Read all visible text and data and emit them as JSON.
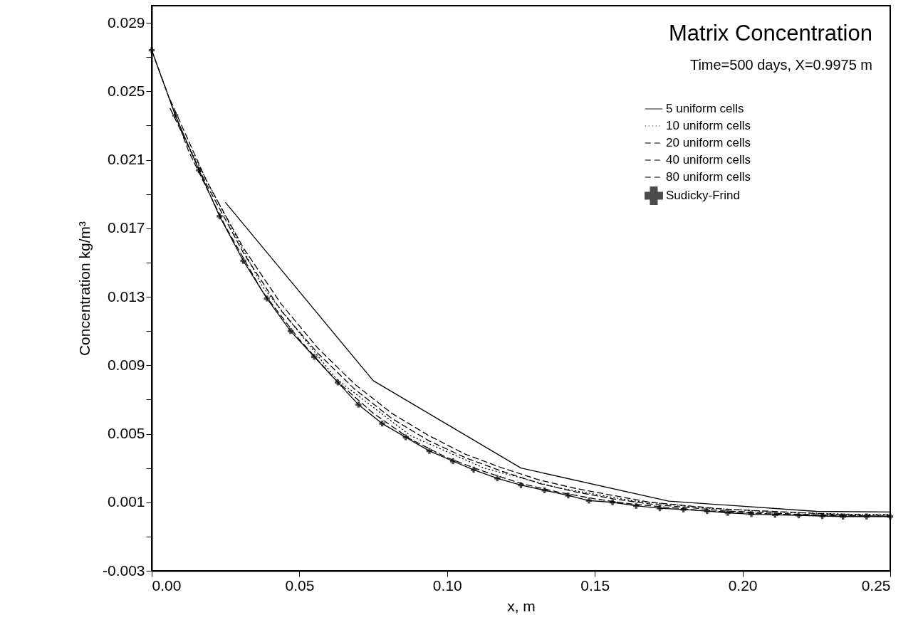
{
  "chart_data": {
    "type": "line",
    "title": "Matrix Concentration",
    "subtitle": "Time=500 days,  X=0.9975 m",
    "xlabel": "x, m",
    "ylabel": "Concentration kg/m³",
    "xlim": [
      0,
      0.25
    ],
    "xticks": [
      {
        "value": 0,
        "label": "0.00"
      },
      0.05,
      {
        "value": 0.1,
        "label": "0.10"
      },
      0.15,
      {
        "value": 0.2,
        "label": "0.20"
      },
      0.25
    ],
    "ylim": [
      -0.003,
      0.03
    ],
    "yticks": [
      -0.003,
      {
        "value": -0.001,
        "label": null
      },
      0.001,
      {
        "value": 0.003,
        "label": null
      },
      0.005,
      {
        "value": 0.007,
        "label": null
      },
      0.009,
      {
        "value": 0.011,
        "label": null
      },
      0.013,
      {
        "value": 0.015,
        "label": null
      },
      0.017,
      {
        "value": 0.019,
        "label": null
      },
      0.021,
      {
        "value": 0.023,
        "label": null
      },
      0.025,
      {
        "value": 0.027,
        "label": null
      },
      0.029
    ],
    "legend": "top right",
    "grid": false,
    "series": [
      {
        "name": "5 uniform cells",
        "color": "#000000",
        "line_style": "solid",
        "x": [
          0.025,
          0.075,
          0.125,
          0.175,
          0.225,
          0.25
        ],
        "values": [
          0.0185,
          0.0081,
          0.003,
          0.00107,
          0.00047,
          0.00043
        ]
      },
      {
        "name": "10 uniform cells",
        "color": "#000000",
        "line_style": "dotted",
        "x": [
          0.0125,
          0.0375,
          0.0625,
          0.0875,
          0.1125,
          0.1375,
          0.1625,
          0.1875,
          0.2125,
          0.2375,
          0.25
        ],
        "values": [
          0.0218,
          0.0136,
          0.0082,
          0.0049,
          0.003,
          0.00185,
          0.0011,
          0.00067,
          0.00042,
          0.0003,
          0.0003
        ]
      },
      {
        "name": "20 uniform cells",
        "color": "#000000",
        "line_style": "dashed",
        "x": [
          0.00625,
          0.01875,
          0.03125,
          0.04375,
          0.05625,
          0.06875,
          0.08125,
          0.09375,
          0.10625,
          0.11875,
          0.13125,
          0.14375,
          0.15625,
          0.16875,
          0.18125,
          0.19375,
          0.20625,
          0.21875,
          0.23125,
          0.24375,
          0.25
        ],
        "values": [
          0.0245,
          0.0197,
          0.0158,
          0.0126,
          0.01,
          0.0079,
          0.0062,
          0.0049,
          0.0038,
          0.003,
          0.0023,
          0.0018,
          0.0014,
          0.001,
          0.0008,
          0.0006,
          0.0005,
          0.0004,
          0.0003,
          0.00025,
          0.00025
        ]
      },
      {
        "name": "40 uniform cells",
        "color": "#000000",
        "line_style": "dashed",
        "x": [
          0.00625,
          0.01875,
          0.03125,
          0.04375,
          0.05625,
          0.06875,
          0.08125,
          0.09375,
          0.10625,
          0.11875,
          0.13125,
          0.14375,
          0.15625,
          0.16875,
          0.18125,
          0.19375,
          0.20625,
          0.21875,
          0.23125,
          0.24375,
          0.25
        ],
        "values": [
          0.024,
          0.0195,
          0.0155,
          0.0122,
          0.0097,
          0.0076,
          0.0059,
          0.0046,
          0.0036,
          0.0028,
          0.0021,
          0.0016,
          0.0012,
          0.0009,
          0.0007,
          0.0005,
          0.0004,
          0.0003,
          0.00025,
          0.0002,
          0.0002
        ]
      },
      {
        "name": "80 uniform cells",
        "color": "#000000",
        "line_style": "dashed",
        "x": [
          0,
          0.0125,
          0.025,
          0.0375,
          0.05,
          0.0625,
          0.075,
          0.0875,
          0.1,
          0.1125,
          0.125,
          0.1375,
          0.15,
          0.1625,
          0.175,
          0.1875,
          0.2,
          0.2125,
          0.225,
          0.2375,
          0.25
        ],
        "values": [
          0.0274,
          0.0215,
          0.0171,
          0.0133,
          0.0105,
          0.0081,
          0.0062,
          0.0047,
          0.0036,
          0.0028,
          0.0021,
          0.0016,
          0.0012,
          0.0009,
          0.0007,
          0.0005,
          0.0004,
          0.0003,
          0.00025,
          0.0002,
          0.00017
        ]
      },
      {
        "name": "Sudicky-Frind",
        "color": "#000000",
        "line_style": "solid",
        "marker": "cross",
        "x": [
          0,
          0.008,
          0.016,
          0.023,
          0.031,
          0.039,
          0.047,
          0.055,
          0.063,
          0.07,
          0.078,
          0.086,
          0.094,
          0.102,
          0.109,
          0.117,
          0.125,
          0.133,
          0.141,
          0.148,
          0.156,
          0.164,
          0.172,
          0.18,
          0.188,
          0.195,
          0.203,
          0.211,
          0.219,
          0.227,
          0.234,
          0.242,
          0.25
        ],
        "values": [
          0.0274,
          0.0236,
          0.0204,
          0.0177,
          0.0151,
          0.0129,
          0.011,
          0.0095,
          0.008,
          0.0067,
          0.0056,
          0.0048,
          0.004,
          0.0034,
          0.0029,
          0.0024,
          0.002,
          0.0017,
          0.0014,
          0.0011,
          0.001,
          0.0008,
          0.00065,
          0.00058,
          0.00049,
          0.00038,
          0.00031,
          0.00027,
          0.00024,
          0.0002,
          0.00017,
          0.00017,
          0.00017
        ]
      }
    ]
  }
}
